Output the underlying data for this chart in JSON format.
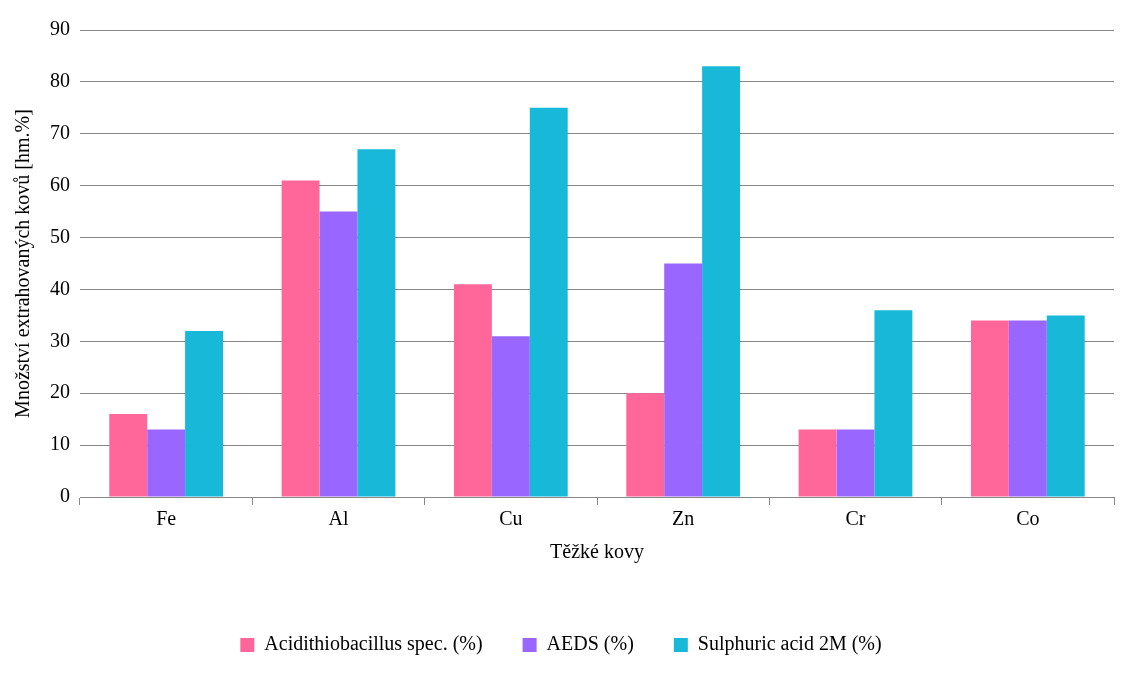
{
  "chart_data": {
    "type": "bar",
    "xlabel": "Těžké kovy",
    "ylabel": "Množství extrahovaných kovů [hm.%]",
    "categories": [
      "Fe",
      "Al",
      "Cu",
      "Zn",
      "Cr",
      "Co"
    ],
    "series": [
      {
        "name": "Acidithiobacillus spec. (%)",
        "color": "#ff6699",
        "values": [
          16,
          61,
          41,
          20,
          13,
          34
        ]
      },
      {
        "name": "AEDS (%)",
        "color": "#9966ff",
        "values": [
          13,
          55,
          31,
          45,
          13,
          34
        ]
      },
      {
        "name": "Sulphuric acid 2M (%)",
        "color": "#17b8d8",
        "values": [
          32,
          67,
          75,
          83,
          36,
          35
        ]
      }
    ],
    "ylim": [
      0,
      90
    ],
    "yticks": [
      0,
      10,
      20,
      30,
      40,
      50,
      60,
      70,
      80,
      90
    ],
    "grid": "y",
    "legend": "bottom"
  }
}
